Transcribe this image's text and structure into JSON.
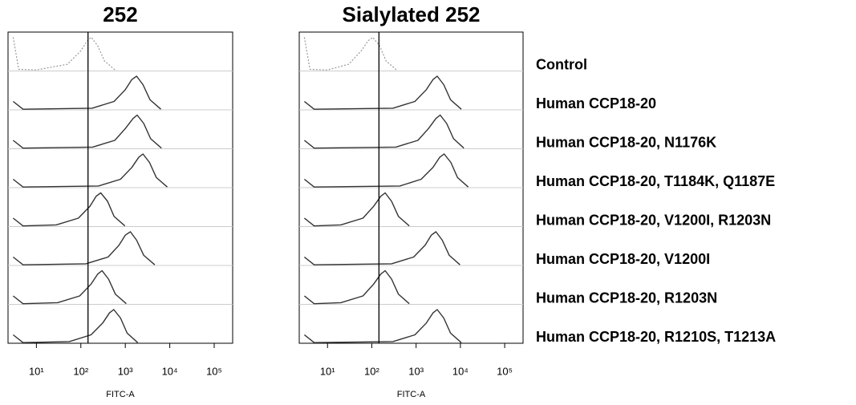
{
  "chart_data": [
    {
      "type": "density",
      "title": "252",
      "xlabel": "FITC-A",
      "xscale": "log",
      "xlim": [
        2.3,
        260000
      ],
      "xticks": [
        {
          "value": 10,
          "label": "10¹"
        },
        {
          "value": 100,
          "label": "10²"
        },
        {
          "value": 1000,
          "label": "10³"
        },
        {
          "value": 10000,
          "label": "10⁴"
        },
        {
          "value": 100000,
          "label": "10⁵"
        }
      ],
      "gate": 145,
      "series": [
        {
          "color": "#999999",
          "style": "dotted",
          "x": [
            3,
            4,
            10,
            50,
            100,
            140,
            171,
            240,
            340,
            600
          ],
          "values": [
            1,
            0.05,
            0.03,
            0.2,
            0.6,
            0.9,
            1,
            0.75,
            0.3,
            0.02
          ]
        },
        {
          "color": "#333333",
          "style": "solid",
          "x": [
            3,
            5,
            180,
            560,
            1000,
            1400,
            1800,
            2500,
            3600,
            6300
          ],
          "values": [
            0.25,
            0.02,
            0.05,
            0.25,
            0.6,
            0.9,
            1,
            0.75,
            0.3,
            0.02
          ]
        },
        {
          "color": "#333333",
          "style": "solid",
          "x": [
            3,
            5,
            185,
            580,
            1000,
            1500,
            1850,
            2600,
            3700,
            6500
          ],
          "values": [
            0.25,
            0.02,
            0.05,
            0.25,
            0.6,
            0.9,
            1,
            0.75,
            0.3,
            0.02
          ]
        },
        {
          "color": "#333333",
          "style": "solid",
          "x": [
            3,
            5,
            250,
            780,
            1400,
            2000,
            2500,
            3500,
            5000,
            8800
          ],
          "values": [
            0.25,
            0.02,
            0.05,
            0.25,
            0.6,
            0.9,
            1,
            0.75,
            0.3,
            0.02
          ]
        },
        {
          "color": "#333333",
          "style": "solid",
          "x": [
            3,
            5,
            28,
            88,
            160,
            220,
            280,
            400,
            560,
            980
          ],
          "values": [
            0.25,
            0.02,
            0.05,
            0.25,
            0.6,
            0.9,
            1,
            0.75,
            0.3,
            0.02
          ]
        },
        {
          "color": "#333333",
          "style": "solid",
          "x": [
            3,
            5,
            130,
            410,
            720,
            1000,
            1300,
            1800,
            2600,
            4600
          ],
          "values": [
            0.25,
            0.02,
            0.05,
            0.25,
            0.6,
            0.9,
            1,
            0.75,
            0.3,
            0.02
          ]
        },
        {
          "color": "#333333",
          "style": "solid",
          "x": [
            3,
            5,
            30,
            94,
            170,
            240,
            300,
            420,
            600,
            1050
          ],
          "values": [
            0.25,
            0.02,
            0.05,
            0.25,
            0.6,
            0.9,
            1,
            0.75,
            0.3,
            0.02
          ]
        },
        {
          "color": "#333333",
          "style": "solid",
          "x": [
            3,
            5,
            55,
            170,
            310,
            440,
            550,
            780,
            1100,
            1900
          ],
          "values": [
            0.25,
            0.02,
            0.05,
            0.25,
            0.6,
            0.9,
            1,
            0.75,
            0.3,
            0.02
          ]
        }
      ]
    },
    {
      "type": "density",
      "title": "Sialylated 252",
      "xlabel": "FITC-A",
      "xscale": "log",
      "xlim": [
        2.3,
        260000
      ],
      "xticks": [
        {
          "value": 10,
          "label": "10¹"
        },
        {
          "value": 100,
          "label": "10²"
        },
        {
          "value": 1000,
          "label": "10³"
        },
        {
          "value": 10000,
          "label": "10⁴"
        },
        {
          "value": 100000,
          "label": "10⁵"
        }
      ],
      "gate": 145,
      "series": [
        {
          "color": "#999999",
          "style": "dotted",
          "x": [
            3,
            4,
            10,
            30,
            58,
            83,
            105,
            150,
            210,
            370
          ],
          "values": [
            1,
            0.05,
            0.03,
            0.2,
            0.6,
            0.9,
            1,
            0.75,
            0.3,
            0.02
          ]
        },
        {
          "color": "#333333",
          "style": "solid",
          "x": [
            3,
            5,
            300,
            940,
            1700,
            2400,
            3000,
            4200,
            6000,
            10500
          ],
          "values": [
            0.25,
            0.02,
            0.05,
            0.25,
            0.6,
            0.9,
            1,
            0.75,
            0.3,
            0.02
          ]
        },
        {
          "color": "#333333",
          "style": "solid",
          "x": [
            3,
            5,
            350,
            1100,
            1900,
            2800,
            3500,
            4900,
            7000,
            12000
          ],
          "values": [
            0.25,
            0.02,
            0.05,
            0.25,
            0.6,
            0.9,
            1,
            0.75,
            0.3,
            0.02
          ]
        },
        {
          "color": "#333333",
          "style": "solid",
          "x": [
            3,
            5,
            430,
            1300,
            2400,
            3400,
            4300,
            6100,
            8600,
            15000
          ],
          "values": [
            0.25,
            0.02,
            0.05,
            0.25,
            0.6,
            0.9,
            1,
            0.75,
            0.3,
            0.02
          ]
        },
        {
          "color": "#333333",
          "style": "solid",
          "x": [
            3,
            5,
            20,
            63,
            110,
            160,
            200,
            280,
            400,
            700
          ],
          "values": [
            0.25,
            0.02,
            0.05,
            0.25,
            0.6,
            0.9,
            1,
            0.75,
            0.3,
            0.02
          ]
        },
        {
          "color": "#333333",
          "style": "solid",
          "x": [
            3,
            5,
            280,
            880,
            1600,
            2200,
            2800,
            3900,
            5600,
            9800
          ],
          "values": [
            0.25,
            0.02,
            0.05,
            0.25,
            0.6,
            0.9,
            1,
            0.75,
            0.3,
            0.02
          ]
        },
        {
          "color": "#333333",
          "style": "solid",
          "x": [
            3,
            5,
            20,
            63,
            110,
            160,
            200,
            280,
            400,
            700
          ],
          "values": [
            0.25,
            0.02,
            0.05,
            0.25,
            0.6,
            0.9,
            1,
            0.75,
            0.3,
            0.02
          ]
        },
        {
          "color": "#333333",
          "style": "solid",
          "x": [
            3,
            5,
            300,
            940,
            1700,
            2400,
            3000,
            4200,
            6000,
            10500
          ],
          "values": [
            0.25,
            0.02,
            0.05,
            0.25,
            0.6,
            0.9,
            1,
            0.75,
            0.3,
            0.02
          ]
        }
      ]
    }
  ],
  "samples": [
    "Control",
    "Human CCP18-20",
    "Human CCP18-20, N1176K",
    "Human CCP18-20, T1184K, Q1187E",
    "Human CCP18-20, V1200I, R1203N",
    "Human CCP18-20, V1200I",
    "Human CCP18-20, R1203N",
    "Human CCP18-20, R1210S, T1213A"
  ]
}
